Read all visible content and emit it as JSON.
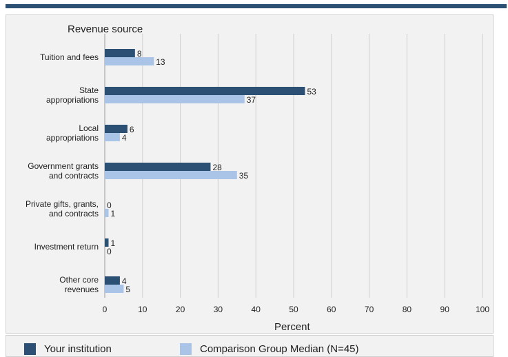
{
  "chart_data": {
    "type": "bar",
    "orientation": "horizontal",
    "category_axis_title": "Revenue source",
    "xlabel": "Percent",
    "xlim": [
      0,
      100
    ],
    "xticks": [
      0,
      10,
      20,
      30,
      40,
      50,
      60,
      70,
      80,
      90,
      100
    ],
    "grid": true,
    "legend_position": "bottom",
    "categories": [
      [
        "Tuition and fees"
      ],
      [
        "State",
        "appropriations"
      ],
      [
        "Local",
        "appropriations"
      ],
      [
        "Government grants",
        "and contracts"
      ],
      [
        "Private gifts, grants,",
        "and contracts"
      ],
      [
        "Investment return"
      ],
      [
        "Other core",
        "revenues"
      ]
    ],
    "series": [
      {
        "name": "Your institution",
        "color": "#2c4f74",
        "values": [
          8,
          53,
          6,
          28,
          0,
          1,
          4
        ]
      },
      {
        "name": "Comparison Group Median (N=45)",
        "color": "#a9c4e6",
        "values": [
          13,
          37,
          4,
          35,
          1,
          0,
          5
        ]
      }
    ]
  }
}
